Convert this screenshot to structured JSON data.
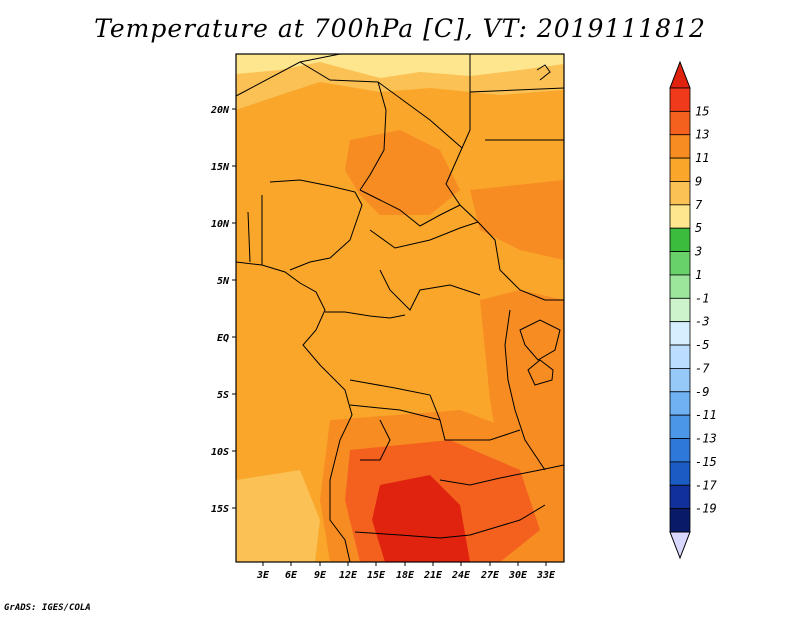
{
  "title": "Temperature at 700hPa [C], VT: 2019111812",
  "footer": "GrADS: IGES/COLA",
  "lat_ticks": [
    "20N",
    "15N",
    "10N",
    "5N",
    "EQ",
    "5S",
    "10S",
    "15S"
  ],
  "lon_ticks": [
    "3E",
    "6E",
    "9E",
    "12E",
    "15E",
    "18E",
    "21E",
    "24E",
    "27E",
    "30E",
    "33E"
  ],
  "colorbar": {
    "labels": [
      "15",
      "13",
      "11",
      "9",
      "7",
      "5",
      "3",
      "1",
      "-1",
      "-3",
      "-5",
      "-7",
      "-9",
      "-11",
      "-13",
      "-15",
      "-17",
      "-19"
    ],
    "colors": [
      "#ef3b1c",
      "#f4611f",
      "#f78c23",
      "#f9a62b",
      "#fbc154",
      "#fde68e",
      "#3cbc3d",
      "#69d16a",
      "#9be69a",
      "#cdf3cd",
      "#d6efff",
      "#bbdefe",
      "#97c9f8",
      "#6fb1f2",
      "#4b96e7",
      "#2d78d8",
      "#1b5cc4",
      "#12309a",
      "#081a68"
    ],
    "over_color": "#e0230f",
    "under_color": "#d8d8ff"
  },
  "map": {
    "fill_colors": {
      "base": "#f9a62b",
      "warm": "#f78c23",
      "hot": "#f4611f",
      "hottest": "#e0230f",
      "cool": "#fbc154",
      "coolest": "#fde68e"
    }
  }
}
